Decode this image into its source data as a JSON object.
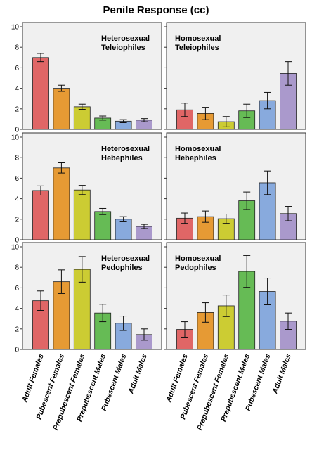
{
  "title": "Penile Response (cc)",
  "colors": [
    "#e06666",
    "#e69a34",
    "#cccc33",
    "#66bb55",
    "#88aadd",
    "#aa99cc"
  ],
  "chart_data": {
    "type": "bar",
    "title": "Penile Response (cc)",
    "ylim": [
      0,
      10
    ],
    "yticks": [
      0,
      2,
      4,
      6,
      8,
      10
    ],
    "categories": [
      "Adult Females",
      "Pubescent Females",
      "Prepubescent Females",
      "Prepubescent Males",
      "Pubescent Males",
      "Adult Males"
    ],
    "panels": [
      {
        "title_lines": [
          "Heterosexual",
          "Teleiophiles"
        ],
        "values": [
          7.0,
          4.0,
          2.2,
          1.1,
          0.8,
          0.9
        ],
        "errors": [
          0.4,
          0.3,
          0.25,
          0.2,
          0.15,
          0.15
        ]
      },
      {
        "title_lines": [
          "Homosexual",
          "Teleiophiles"
        ],
        "values": [
          1.9,
          1.55,
          0.75,
          1.8,
          2.8,
          5.45
        ],
        "errors": [
          0.65,
          0.6,
          0.5,
          0.65,
          0.8,
          1.15
        ]
      },
      {
        "title_lines": [
          "Heterosexual",
          "Hebephiles"
        ],
        "values": [
          4.8,
          7.0,
          4.85,
          2.75,
          2.0,
          1.3
        ],
        "errors": [
          0.45,
          0.5,
          0.45,
          0.3,
          0.25,
          0.2
        ]
      },
      {
        "title_lines": [
          "Homosexual",
          "Hebephiles"
        ],
        "values": [
          2.1,
          2.25,
          2.05,
          3.8,
          5.55,
          2.55
        ],
        "errors": [
          0.5,
          0.55,
          0.45,
          0.85,
          1.15,
          0.7
        ]
      },
      {
        "title_lines": [
          "Heterosexual",
          "Pedophiles"
        ],
        "values": [
          4.75,
          6.6,
          7.8,
          3.55,
          2.55,
          1.45
        ],
        "errors": [
          0.95,
          1.15,
          1.25,
          0.85,
          0.7,
          0.55
        ]
      },
      {
        "title_lines": [
          "Homosexual",
          "Pedophiles"
        ],
        "values": [
          1.95,
          3.6,
          4.25,
          7.6,
          5.65,
          2.75
        ],
        "errors": [
          0.75,
          0.95,
          1.05,
          1.55,
          1.3,
          0.8
        ]
      }
    ]
  }
}
